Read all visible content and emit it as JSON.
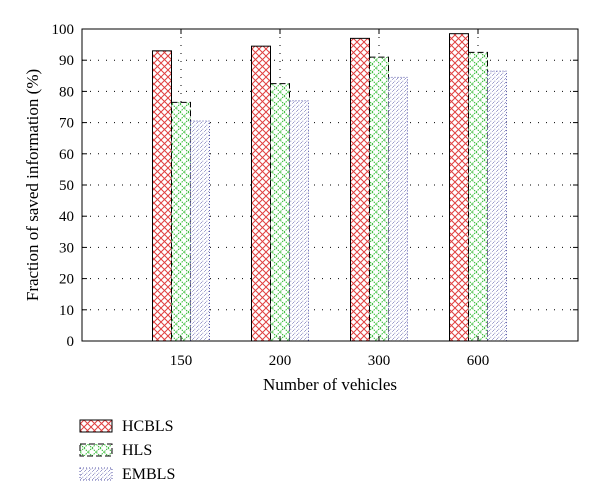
{
  "chart_data": {
    "type": "bar",
    "categories": [
      "150",
      "200",
      "300",
      "600"
    ],
    "series": [
      {
        "name": "HCBLS",
        "values": [
          93,
          94.5,
          97,
          98.5
        ],
        "color": "#e04040",
        "pattern": "crosshatch"
      },
      {
        "name": "HLS",
        "values": [
          76.5,
          82.5,
          91,
          92.5
        ],
        "color": "#33bb33",
        "pattern": "diamond"
      },
      {
        "name": "EMBLS",
        "values": [
          70.5,
          77,
          84.5,
          86.5
        ],
        "color": "#5a5aaa",
        "pattern": "dots"
      }
    ],
    "xlabel": "Number of vehicles",
    "ylabel": "Fraction of saved information (%)",
    "ylim": [
      0,
      100
    ],
    "yticks": [
      "0",
      "10",
      "20",
      "30",
      "40",
      "50",
      "60",
      "70",
      "80",
      "90",
      "100"
    ],
    "grid": true,
    "legend": "below"
  }
}
